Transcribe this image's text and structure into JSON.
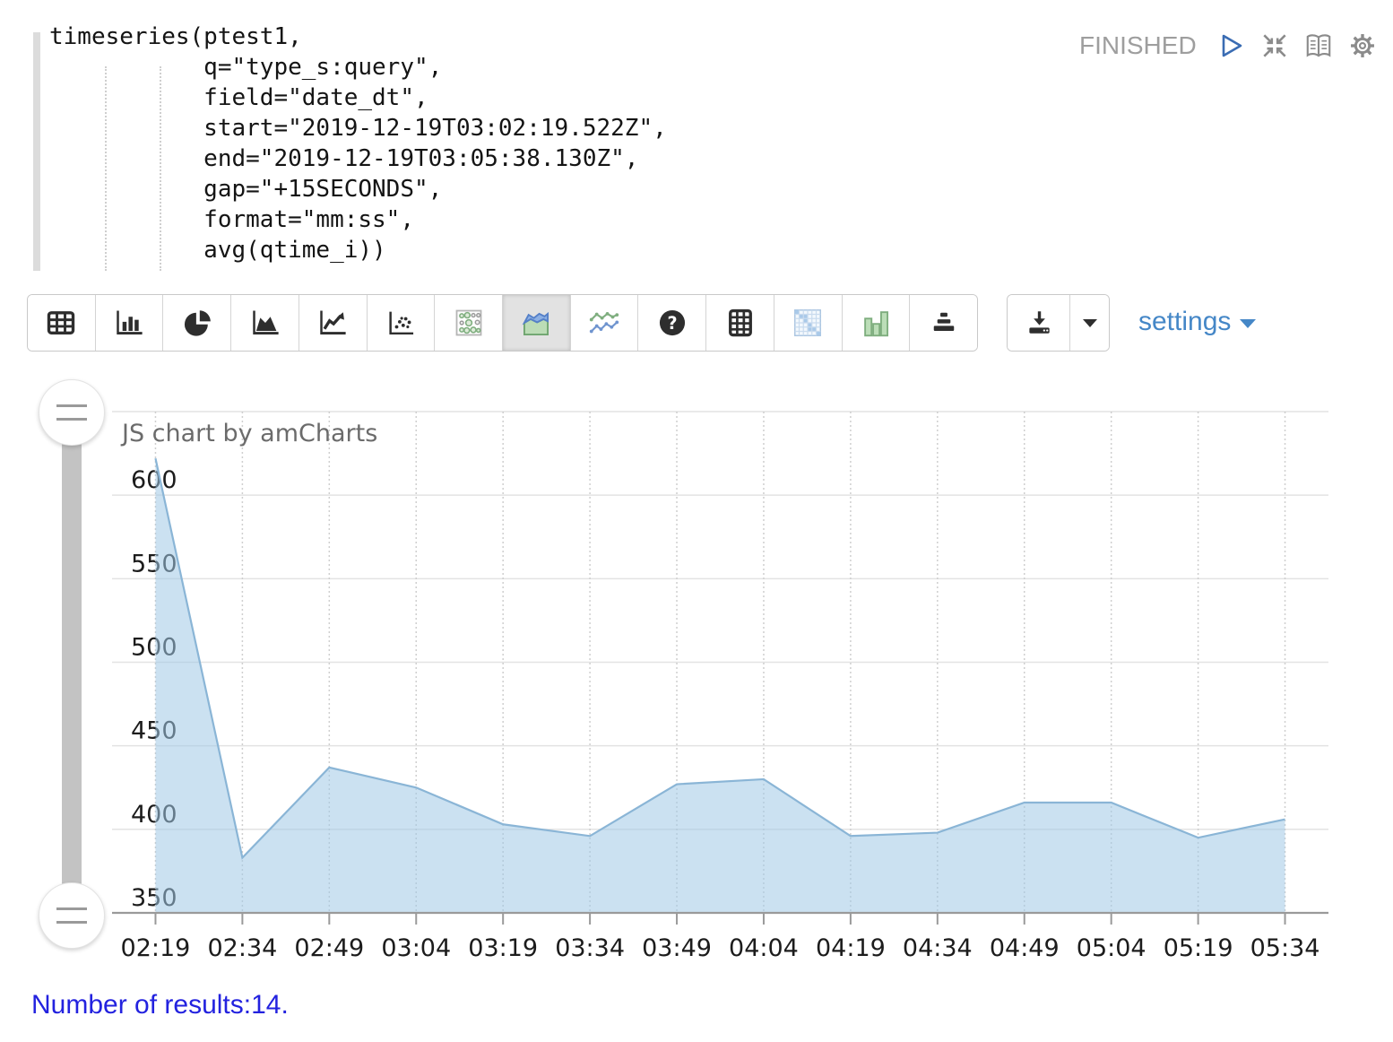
{
  "editor": {
    "code": "timeseries(ptest1,\n           q=\"type_s:query\",\n           field=\"date_dt\",\n           start=\"2019-12-19T03:02:19.522Z\",\n           end=\"2019-12-19T03:05:38.130Z\",\n           gap=\"+15SECONDS\",\n           format=\"mm:ss\",\n           avg(qtime_i))"
  },
  "paragraph": {
    "status": "FINISHED",
    "control_icons": [
      "play-icon",
      "compress-icon",
      "book-icon",
      "gear-icon"
    ]
  },
  "toolbar": {
    "buttons": [
      "table",
      "column-chart",
      "pie-chart",
      "area-chart",
      "line-chart",
      "scatter-plot",
      "bubble-matrix",
      "stacked-area",
      "multi-line",
      "help",
      "data-grid",
      "diagonal-matrix",
      "grouped-bars",
      "pyramid-bars"
    ],
    "selected_index": 7,
    "download_icon": "download-icon",
    "settings_label": "settings"
  },
  "chart_data": {
    "type": "area",
    "title": "JS chart by amCharts",
    "categories": [
      "02:19",
      "02:34",
      "02:49",
      "03:04",
      "03:19",
      "03:34",
      "03:49",
      "04:04",
      "04:19",
      "04:34",
      "04:49",
      "05:04",
      "05:19",
      "05:34"
    ],
    "values": [
      622,
      383,
      437,
      425,
      403,
      396,
      427,
      430,
      396,
      398,
      416,
      416,
      395,
      406
    ],
    "y_ticks": [
      350,
      400,
      450,
      500,
      550,
      600
    ],
    "ylim": [
      350,
      650
    ],
    "grid": true,
    "legend": "none",
    "colors": {
      "area_fill": "rgba(160,201,229,0.55)",
      "area_line": "#8ab5d6",
      "gridline": "#e3e3e3",
      "axis_line": "#9a9a9a",
      "dotted_grid": "#cfcfcf",
      "label": "#1c1c1c",
      "title": "#6b6b6b"
    }
  },
  "footer": {
    "results_text": "Number of results:14."
  }
}
